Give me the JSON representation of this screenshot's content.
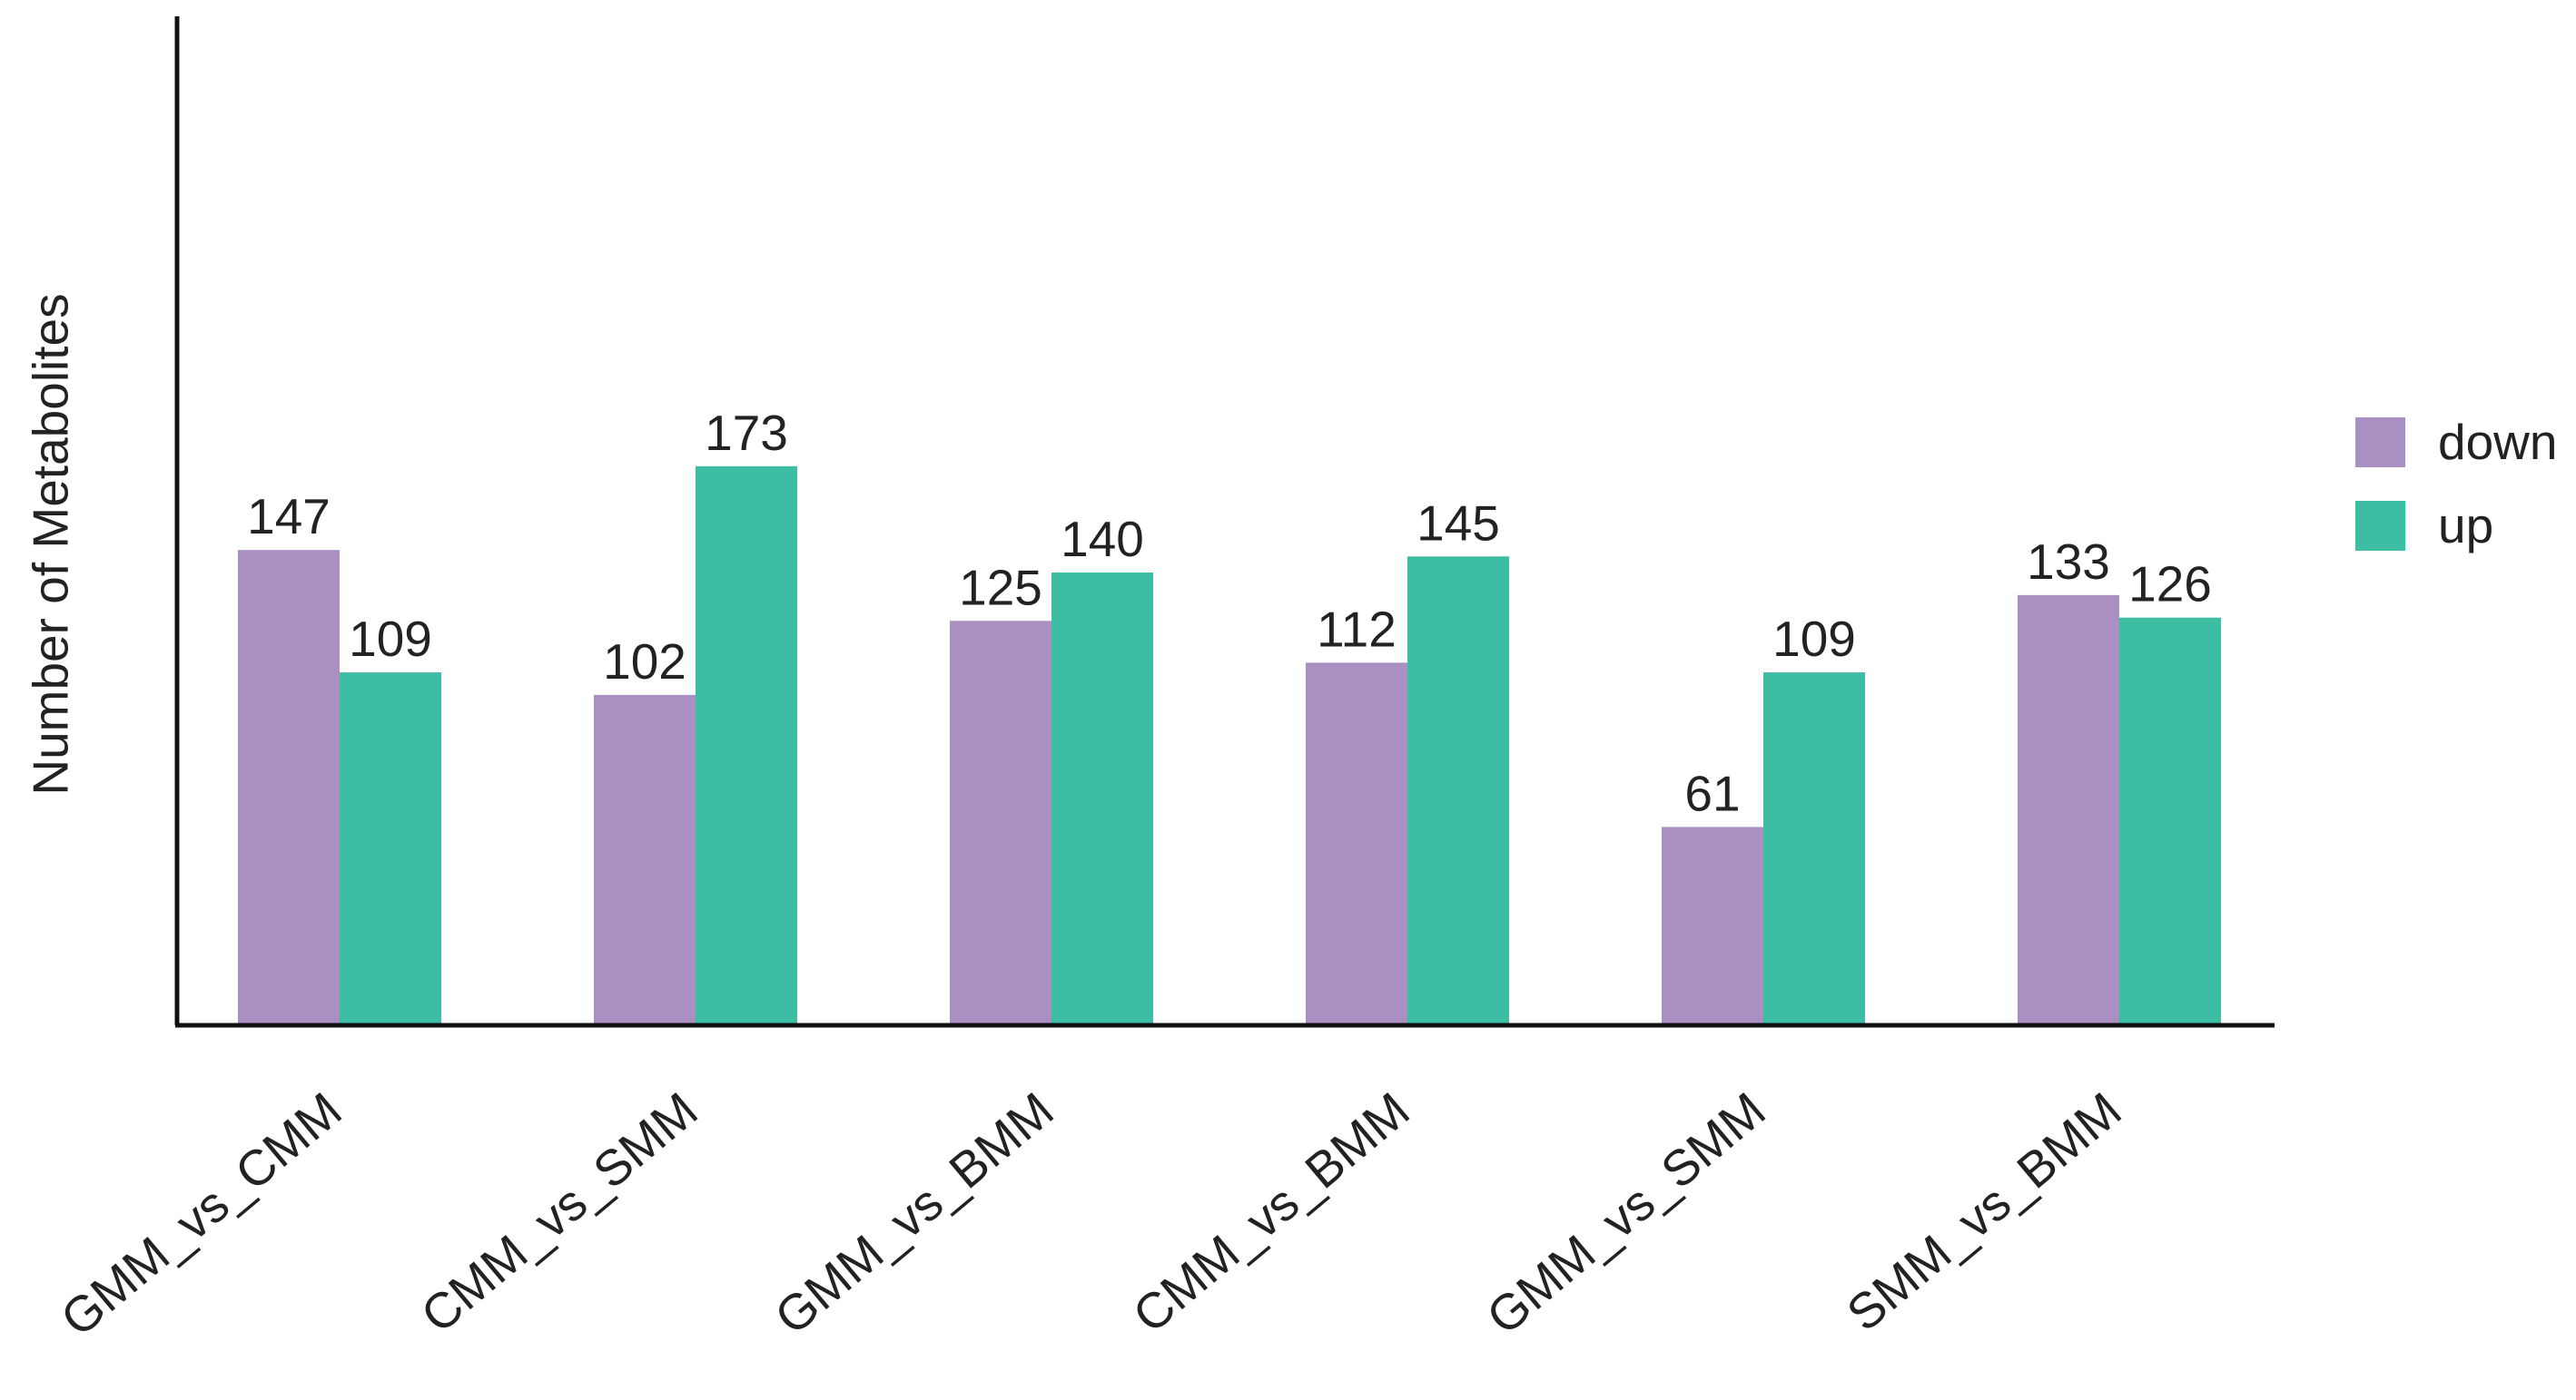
{
  "chart_data": {
    "type": "bar",
    "title": "",
    "xlabel": "",
    "ylabel": "Number of Metabolites",
    "ylim": [
      0,
      190
    ],
    "grid": false,
    "legend_position": "right",
    "categories": [
      "GMM_vs_CMM",
      "CMM_vs_SMM",
      "GMM_vs_BMM",
      "CMM_vs_BMM",
      "GMM_vs_SMM",
      "SMM_vs_BMM"
    ],
    "series": [
      {
        "name": "down",
        "color": "#AA8FC3",
        "values": [
          147,
          102,
          125,
          112,
          61,
          133
        ]
      },
      {
        "name": "up",
        "color": "#3DBDA4",
        "values": [
          109,
          173,
          140,
          145,
          109,
          126
        ]
      }
    ]
  }
}
